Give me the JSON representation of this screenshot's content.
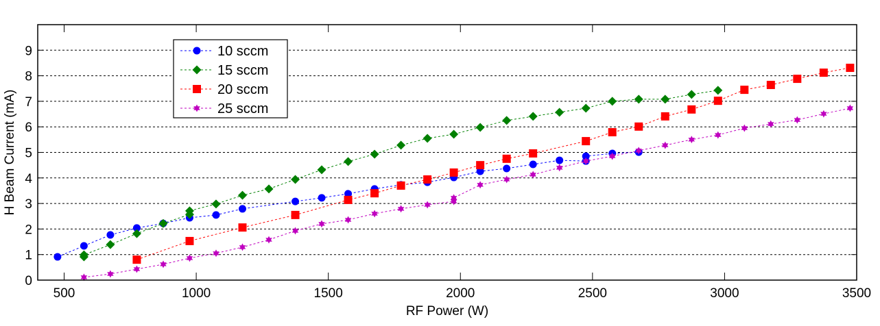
{
  "chart_data": {
    "type": "line",
    "title": "",
    "xlabel": "RF Power (W)",
    "ylabel": "H Beam Current (mA)",
    "xlim": [
      400,
      3500
    ],
    "ylim": [
      0,
      10
    ],
    "xticks": [
      500,
      1000,
      1500,
      2000,
      2500,
      3000,
      3500
    ],
    "yticks": [
      0,
      1,
      2,
      3,
      4,
      5,
      6,
      7,
      8,
      9
    ],
    "grid": "horizontal dashed",
    "legend_position": "top-left",
    "series": [
      {
        "name": "10 sccm",
        "color": "#0000ff",
        "marker": "circle",
        "points": [
          [
            475,
            0.91
          ],
          [
            575,
            1.34
          ],
          [
            675,
            1.77
          ],
          [
            775,
            2.04
          ],
          [
            875,
            2.22
          ],
          [
            975,
            2.44
          ],
          [
            1075,
            2.55
          ],
          [
            1175,
            2.79
          ],
          [
            1375,
            3.08
          ],
          [
            1475,
            3.22
          ],
          [
            1575,
            3.38
          ],
          [
            1675,
            3.57
          ],
          [
            1775,
            3.73
          ],
          [
            1875,
            3.83
          ],
          [
            1975,
            4.02
          ],
          [
            2075,
            4.26
          ],
          [
            2175,
            4.37
          ],
          [
            2275,
            4.53
          ],
          [
            2375,
            4.69
          ],
          [
            2475,
            4.66
          ],
          [
            2475,
            4.85
          ],
          [
            2575,
            4.96
          ],
          [
            2675,
            5.01
          ]
        ]
      },
      {
        "name": "15 sccm",
        "color": "#008000",
        "marker": "diamond",
        "points": [
          [
            575,
            0.91
          ],
          [
            575,
            0.99
          ],
          [
            675,
            1.39
          ],
          [
            775,
            1.82
          ],
          [
            875,
            2.22
          ],
          [
            975,
            2.57
          ],
          [
            975,
            2.71
          ],
          [
            1075,
            2.98
          ],
          [
            1175,
            3.32
          ],
          [
            1275,
            3.57
          ],
          [
            1375,
            3.94
          ],
          [
            1475,
            4.32
          ],
          [
            1575,
            4.64
          ],
          [
            1675,
            4.93
          ],
          [
            1775,
            5.28
          ],
          [
            1875,
            5.55
          ],
          [
            1975,
            5.71
          ],
          [
            2075,
            5.98
          ],
          [
            2175,
            6.25
          ],
          [
            2275,
            6.41
          ],
          [
            2375,
            6.57
          ],
          [
            2475,
            6.73
          ],
          [
            2575,
            7.0
          ],
          [
            2675,
            7.08
          ],
          [
            2775,
            7.08
          ],
          [
            2875,
            7.27
          ],
          [
            2975,
            7.43
          ]
        ]
      },
      {
        "name": "20 sccm",
        "color": "#ff0000",
        "marker": "square",
        "points": [
          [
            775,
            0.8
          ],
          [
            975,
            1.53
          ],
          [
            1175,
            2.06
          ],
          [
            1375,
            2.55
          ],
          [
            1575,
            3.14
          ],
          [
            1675,
            3.4
          ],
          [
            1775,
            3.7
          ],
          [
            1875,
            3.94
          ],
          [
            1975,
            4.21
          ],
          [
            2075,
            4.5
          ],
          [
            2175,
            4.75
          ],
          [
            2275,
            4.96
          ],
          [
            2475,
            5.44
          ],
          [
            2575,
            5.79
          ],
          [
            2675,
            6.01
          ],
          [
            2775,
            6.41
          ],
          [
            2875,
            6.68
          ],
          [
            2975,
            7.02
          ],
          [
            3075,
            7.45
          ],
          [
            3175,
            7.64
          ],
          [
            3275,
            7.88
          ],
          [
            3375,
            8.12
          ],
          [
            3475,
            8.31
          ]
        ]
      },
      {
        "name": "25 sccm",
        "color": "#bf00bf",
        "marker": "hexagram",
        "points": [
          [
            575,
            0.11
          ],
          [
            675,
            0.24
          ],
          [
            775,
            0.43
          ],
          [
            875,
            0.62
          ],
          [
            975,
            0.86
          ],
          [
            1075,
            1.05
          ],
          [
            1175,
            1.29
          ],
          [
            1275,
            1.58
          ],
          [
            1375,
            1.93
          ],
          [
            1475,
            2.2
          ],
          [
            1575,
            2.36
          ],
          [
            1675,
            2.6
          ],
          [
            1775,
            2.79
          ],
          [
            1875,
            2.95
          ],
          [
            1975,
            3.08
          ],
          [
            1975,
            3.22
          ],
          [
            2075,
            3.73
          ],
          [
            2175,
            3.94
          ],
          [
            2275,
            4.13
          ],
          [
            2375,
            4.4
          ],
          [
            2475,
            4.66
          ],
          [
            2575,
            4.85
          ],
          [
            2675,
            5.07
          ],
          [
            2775,
            5.28
          ],
          [
            2875,
            5.5
          ],
          [
            2975,
            5.68
          ],
          [
            3075,
            5.95
          ],
          [
            3175,
            6.11
          ],
          [
            3275,
            6.27
          ],
          [
            3375,
            6.51
          ],
          [
            3475,
            6.73
          ]
        ]
      }
    ]
  }
}
